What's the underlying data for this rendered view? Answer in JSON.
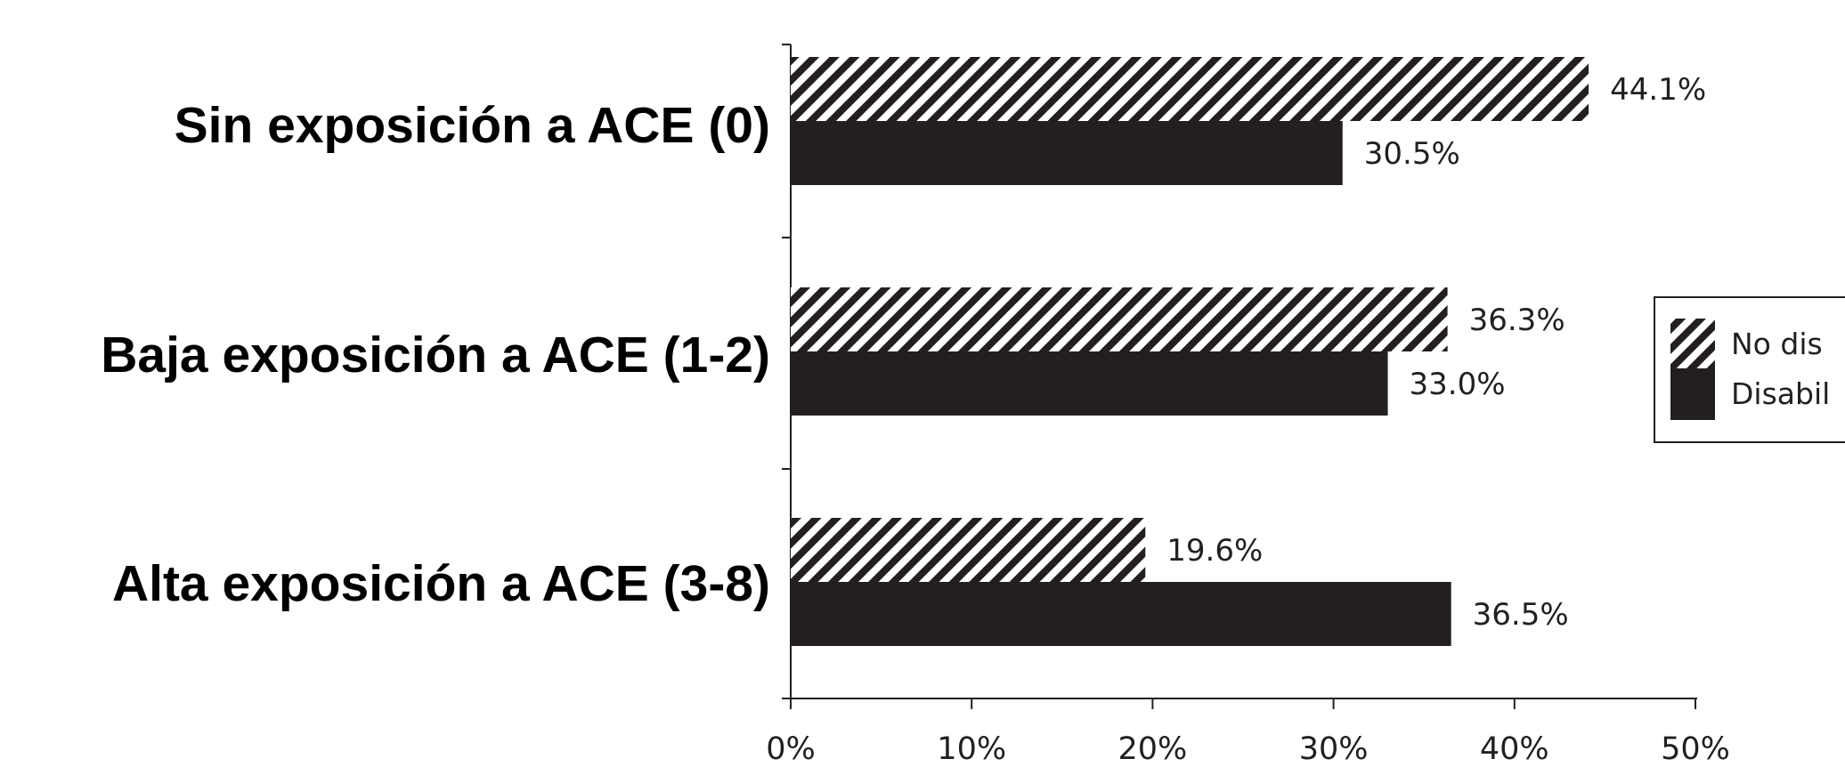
{
  "chart_data": {
    "type": "bar",
    "orientation": "horizontal",
    "categories": [
      "Sin exposición a ACE (0)",
      "Baja exposición a ACE (1-2)",
      "Alta exposición a ACE (3-8)"
    ],
    "series": [
      {
        "name": "No dis",
        "pattern": "diagonal-hatch",
        "color": "#231f20",
        "values": [
          44.1,
          36.3,
          19.6
        ],
        "labels": [
          "44.1%",
          "36.3%",
          "19.6%"
        ]
      },
      {
        "name": "Disabil",
        "pattern": "solid",
        "color": "#231f20",
        "values": [
          30.5,
          33.0,
          36.5
        ],
        "labels": [
          "30.5%",
          "33.0%",
          "36.5%"
        ]
      }
    ],
    "xlim": [
      0,
      50
    ],
    "xticks": [
      0,
      10,
      20,
      30,
      40,
      50
    ],
    "xtick_labels": [
      "0%",
      "10%",
      "20%",
      "30%",
      "40%",
      "50%"
    ],
    "grid": false,
    "legend_position": "right (cropped at image edge)"
  }
}
